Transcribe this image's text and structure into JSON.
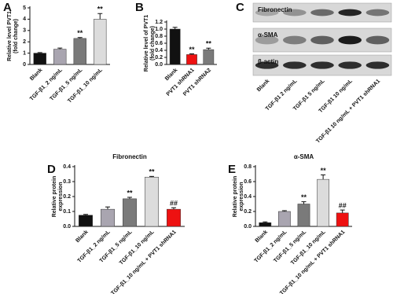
{
  "chart_data": [
    {
      "type": "bar",
      "panel": "A",
      "ylabel": [
        "Relative level PVT1",
        "(fold change)"
      ],
      "categories": [
        "Blank",
        "TGF-β1_2 ng/mL",
        "TGF-β1_5 ng/mL",
        "TGF-β1_10 ng/mL"
      ],
      "values": [
        1.0,
        1.35,
        2.3,
        4.0
      ],
      "errors": [
        0.05,
        0.1,
        0.08,
        0.5
      ],
      "colors": [
        "#111111",
        "#a9a5b0",
        "#7a7a7a",
        "#dcdcdc"
      ],
      "significance": [
        null,
        null,
        "**",
        "**"
      ],
      "ylim": [
        0,
        5
      ],
      "yticks": [
        0,
        1,
        2,
        3,
        4,
        5
      ]
    },
    {
      "type": "bar",
      "panel": "B",
      "ylabel": [
        "Relative level of PVT1",
        "(fold change)"
      ],
      "categories": [
        "Blank",
        "PVT1 shRNA1",
        "PVT1 shRNA2"
      ],
      "values": [
        1.0,
        0.28,
        0.42
      ],
      "errors": [
        0.05,
        0.02,
        0.04
      ],
      "colors": [
        "#111111",
        "#ee1111",
        "#7a7a7a"
      ],
      "significance": [
        null,
        "**",
        "**"
      ],
      "ylim": [
        0,
        1.2
      ],
      "yticks": [
        {
          "value": 0,
          "label": "0.0"
        },
        0.2,
        0.4,
        0.6,
        0.8,
        {
          "value": 1,
          "label": "1.0"
        },
        1.2
      ]
    },
    {
      "type": "blot",
      "panel": "C",
      "rows": [
        "Fibronectin",
        "α-SMA",
        "β-actin"
      ],
      "categories": [
        "Blank",
        "TGF-β1 2 ng/mL",
        "TGF-β1 5 ng/mL",
        "TGF-β1 10 ng/mL",
        "TGF-β1 10 ng/mL + PVT1 shRNA1"
      ]
    },
    {
      "type": "bar",
      "panel": "D",
      "title": "Fibronectin",
      "ylabel": [
        "Relative protein",
        "expression"
      ],
      "categories": [
        "Blank",
        "TGF-β1_2 ng/mL",
        "TGF-β1_5 ng/mL",
        "TGF-β1_10 ng/mL",
        "TGF-β1_10 ng/mL + PVT1 shRNA1"
      ],
      "values": [
        0.075,
        0.115,
        0.185,
        0.33,
        0.115
      ],
      "errors": [
        0.005,
        0.015,
        0.01,
        0.005,
        0.01
      ],
      "colors": [
        "#111111",
        "#a9a5b0",
        "#7a7a7a",
        "#dcdcdc",
        "#ee1111"
      ],
      "significance": [
        null,
        null,
        "**",
        "**",
        "##"
      ],
      "ylim": [
        0,
        0.4
      ],
      "yticks": [
        {
          "value": 0,
          "label": "0.0"
        },
        0.1,
        0.2,
        0.3,
        0.4
      ]
    },
    {
      "type": "bar",
      "panel": "E",
      "title": "α-SMA",
      "ylabel": [
        "Relative protein",
        "expression"
      ],
      "categories": [
        "Blank",
        "TGF-β1_2 ng/mL",
        "TGF-β1_5 ng/mL",
        "TGF-β1_10 ng/mL",
        "TGF-β1_10 ng/mL + PVT1 shRNA1"
      ],
      "values": [
        0.05,
        0.2,
        0.3,
        0.63,
        0.18
      ],
      "errors": [
        0.01,
        0.01,
        0.03,
        0.06,
        0.04
      ],
      "colors": [
        "#111111",
        "#a9a5b0",
        "#7a7a7a",
        "#dcdcdc",
        "#ee1111"
      ],
      "significance": [
        null,
        null,
        "**",
        "**",
        "##"
      ],
      "ylim": [
        0,
        0.8
      ],
      "yticks": [
        {
          "value": 0,
          "label": "0.0"
        },
        0.2,
        0.4,
        0.6,
        0.8
      ]
    }
  ]
}
